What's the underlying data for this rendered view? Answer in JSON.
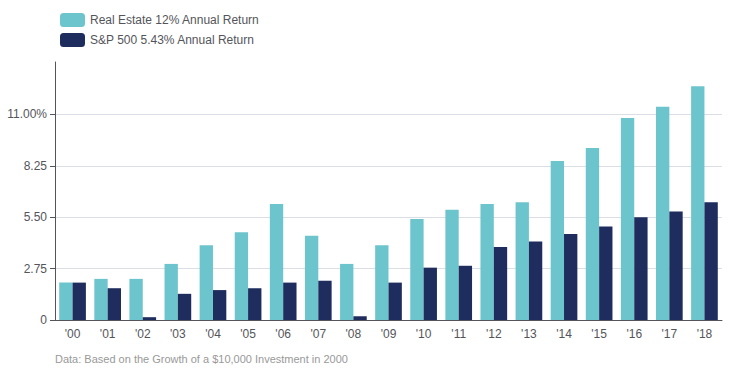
{
  "chart_data": {
    "type": "bar",
    "categories": [
      "'00",
      "'01",
      "'02",
      "'03",
      "'04",
      "'05",
      "'06",
      "'07",
      "'08",
      "'09",
      "'10",
      "'11",
      "'12",
      "'13",
      "'14",
      "'15",
      "'16",
      "'17",
      "'18"
    ],
    "series": [
      {
        "name": "Real Estate 12% Annual Return",
        "color": "#6cc5cc",
        "values": [
          2.0,
          2.2,
          2.2,
          3.0,
          4.0,
          4.7,
          6.2,
          4.5,
          3.0,
          4.0,
          5.4,
          5.9,
          6.2,
          6.3,
          8.5,
          9.2,
          10.8,
          11.4,
          12.5
        ]
      },
      {
        "name": "S&P 500 5.43% Annual Return",
        "color": "#1e2d5e",
        "values": [
          2.0,
          1.7,
          0.15,
          1.4,
          1.6,
          1.7,
          2.0,
          2.1,
          0.2,
          2.0,
          2.8,
          2.9,
          3.9,
          4.2,
          4.6,
          5.0,
          5.5,
          5.8,
          6.3
        ]
      }
    ],
    "ylim": [
      0,
      13.8
    ],
    "yticks": [
      0,
      2.75,
      {
        "value": 5.5,
        "label": "5.50"
      },
      8.25,
      {
        "value": 11,
        "label": "11.00%"
      }
    ],
    "grid": true,
    "legend": "upper left",
    "annotations": [
      "Data: Based on the Growth of a $10,000 Investment in 2000"
    ]
  }
}
